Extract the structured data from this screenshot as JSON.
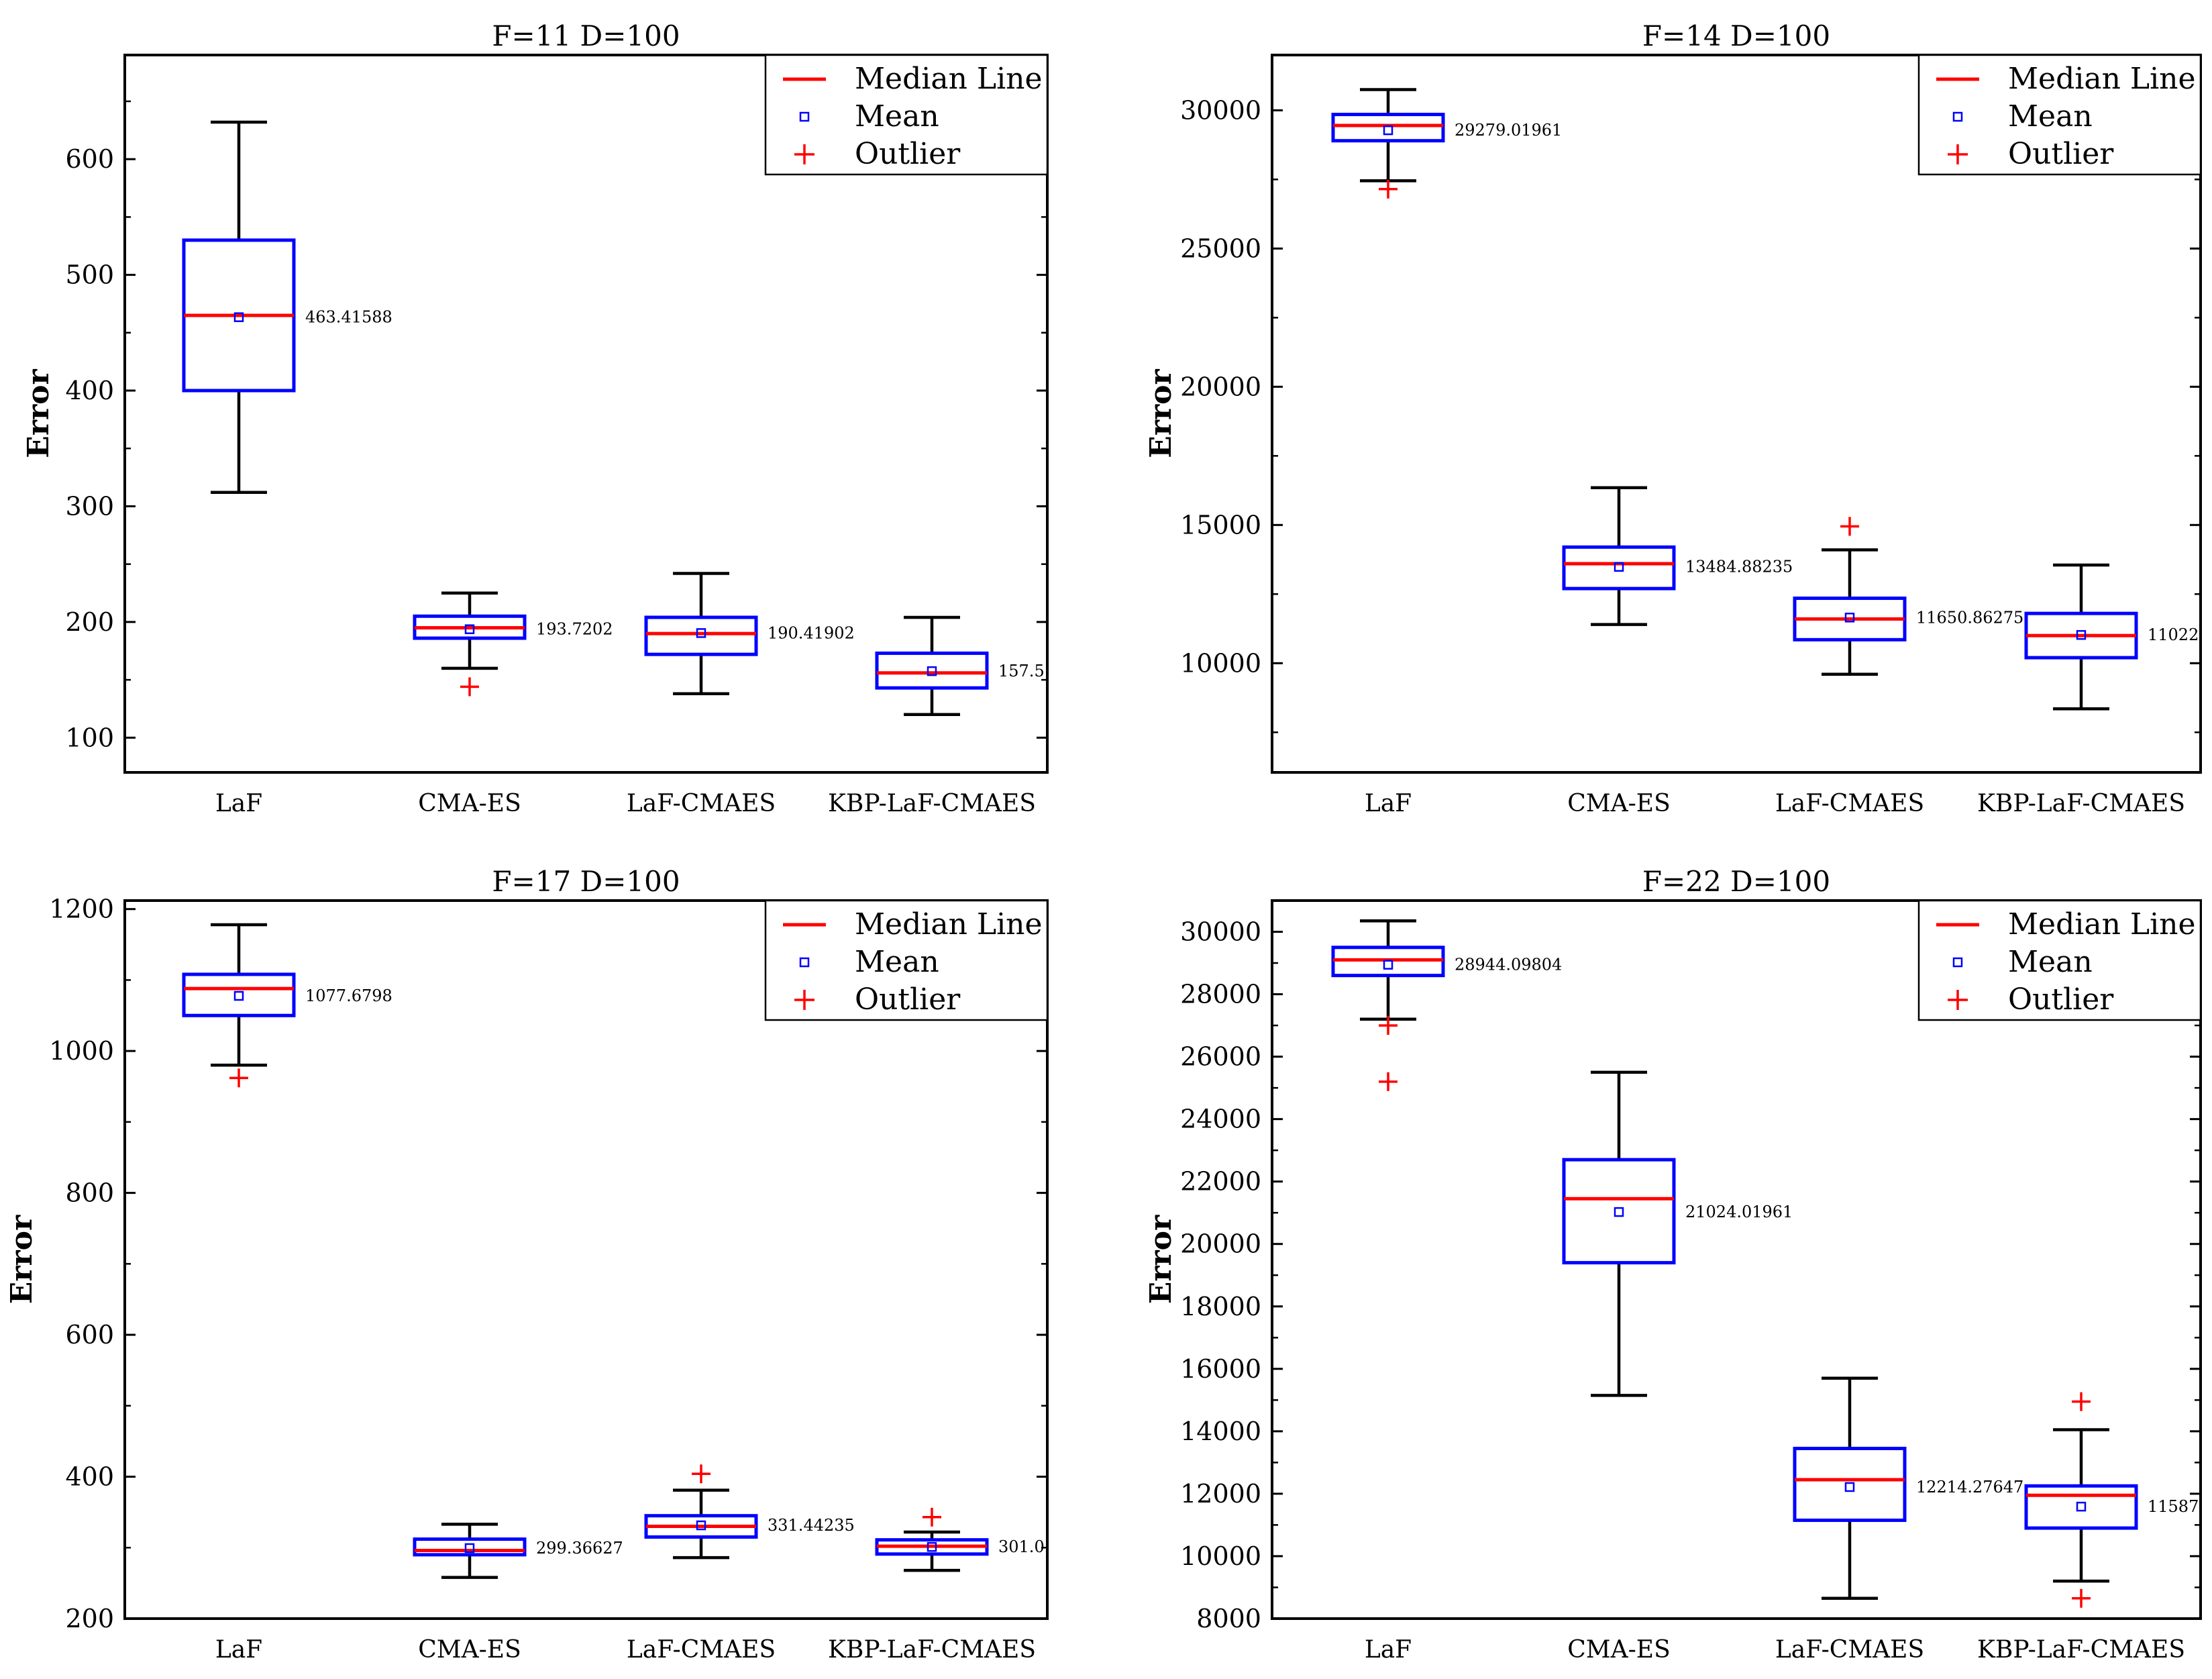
{
  "legend": {
    "median": "Median Line",
    "mean": "Mean",
    "outlier": "Outlier"
  },
  "colors": {
    "box": "#0000ff",
    "median": "#ff0000",
    "whisker": "#000000",
    "mean": "#0000ff",
    "outlier": "#ff0000"
  },
  "chart_data": [
    {
      "type": "box",
      "title": "F=11 D=100",
      "ylabel": "Error",
      "ylim": [
        70,
        690
      ],
      "yticks": [
        100,
        200,
        300,
        400,
        500,
        600
      ],
      "categories": [
        "LaF",
        "CMA-ES",
        "LaF-CMAES",
        "KBP-LaF-CMAES"
      ],
      "boxes": [
        {
          "q1": 400,
          "median": 465,
          "q3": 530,
          "whisker_low": 312,
          "whisker_high": 632,
          "mean": 463.41588,
          "mean_label": "463.41588",
          "outliers": []
        },
        {
          "q1": 186,
          "median": 195,
          "q3": 205,
          "whisker_low": 160,
          "whisker_high": 225,
          "mean": 193.7202,
          "mean_label": "193.7202",
          "outliers": [
            144
          ]
        },
        {
          "q1": 172,
          "median": 190,
          "q3": 204,
          "whisker_low": 138,
          "whisker_high": 242,
          "mean": 190.41902,
          "mean_label": "190.41902",
          "outliers": []
        },
        {
          "q1": 143,
          "median": 156,
          "q3": 173,
          "whisker_low": 120,
          "whisker_high": 204,
          "mean": 157.5,
          "mean_label": "157.5",
          "outliers": []
        }
      ]
    },
    {
      "type": "box",
      "title": "F=14 D=100",
      "ylabel": "Error",
      "ylim": [
        6050,
        32000
      ],
      "yticks": [
        10000,
        15000,
        20000,
        25000,
        30000
      ],
      "categories": [
        "LaF",
        "CMA-ES",
        "LaF-CMAES",
        "KBP-LaF-CMAES"
      ],
      "boxes": [
        {
          "q1": 28900,
          "median": 29450,
          "q3": 29850,
          "whisker_low": 27450,
          "whisker_high": 30750,
          "mean": 29279.01961,
          "mean_label": "29279.01961",
          "outliers": [
            27150
          ]
        },
        {
          "q1": 12700,
          "median": 13600,
          "q3": 14200,
          "whisker_low": 11400,
          "whisker_high": 16350,
          "mean": 13484.88235,
          "mean_label": "13484.88235",
          "outliers": []
        },
        {
          "q1": 10850,
          "median": 11600,
          "q3": 12350,
          "whisker_low": 9600,
          "whisker_high": 14100,
          "mean": 11650.86275,
          "mean_label": "11650.86275",
          "outliers": [
            14950
          ]
        },
        {
          "q1": 10200,
          "median": 11000,
          "q3": 11800,
          "whisker_low": 8350,
          "whisker_high": 13550,
          "mean": 11022,
          "mean_label": "11022.",
          "outliers": []
        }
      ]
    },
    {
      "type": "box",
      "title": "F=17 D=100",
      "ylabel": "Error",
      "ylim": [
        200,
        1212
      ],
      "yticks": [
        200,
        400,
        600,
        800,
        1000,
        1200
      ],
      "categories": [
        "LaF",
        "CMA-ES",
        "LaF-CMAES",
        "KBP-LaF-CMAES"
      ],
      "boxes": [
        {
          "q1": 1050,
          "median": 1088,
          "q3": 1108,
          "whisker_low": 980,
          "whisker_high": 1178,
          "mean": 1077.6798,
          "mean_label": "1077.6798",
          "outliers": [
            962
          ]
        },
        {
          "q1": 290,
          "median": 296,
          "q3": 312,
          "whisker_low": 258,
          "whisker_high": 333,
          "mean": 299.36627,
          "mean_label": "299.36627",
          "outliers": []
        },
        {
          "q1": 315,
          "median": 330,
          "q3": 345,
          "whisker_low": 286,
          "whisker_high": 381,
          "mean": 331.44235,
          "mean_label": "331.44235",
          "outliers": [
            404
          ]
        },
        {
          "q1": 291,
          "median": 302,
          "q3": 311,
          "whisker_low": 268,
          "whisker_high": 322,
          "mean": 301.0,
          "mean_label": "301.0",
          "outliers": [
            343
          ]
        }
      ]
    },
    {
      "type": "box",
      "title": "F=22 D=100",
      "ylabel": "Error",
      "ylim": [
        8000,
        31000
      ],
      "yticks": [
        8000,
        10000,
        12000,
        14000,
        16000,
        18000,
        20000,
        22000,
        24000,
        26000,
        28000,
        30000
      ],
      "categories": [
        "LaF",
        "CMA-ES",
        "LaF-CMAES",
        "KBP-LaF-CMAES"
      ],
      "boxes": [
        {
          "q1": 28600,
          "median": 29100,
          "q3": 29500,
          "whisker_low": 27200,
          "whisker_high": 30350,
          "mean": 28944.09804,
          "mean_label": "28944.09804",
          "outliers": [
            27000,
            25200
          ]
        },
        {
          "q1": 19400,
          "median": 21450,
          "q3": 22700,
          "whisker_low": 15150,
          "whisker_high": 25500,
          "mean": 21024.01961,
          "mean_label": "21024.01961",
          "outliers": []
        },
        {
          "q1": 11150,
          "median": 12450,
          "q3": 13450,
          "whisker_low": 8650,
          "whisker_high": 15700,
          "mean": 12214.27647,
          "mean_label": "12214.27647",
          "outliers": []
        },
        {
          "q1": 10900,
          "median": 11950,
          "q3": 12250,
          "whisker_low": 9200,
          "whisker_high": 14050,
          "mean": 11587,
          "mean_label": "11587.",
          "outliers": [
            14950,
            8650
          ]
        }
      ]
    }
  ]
}
